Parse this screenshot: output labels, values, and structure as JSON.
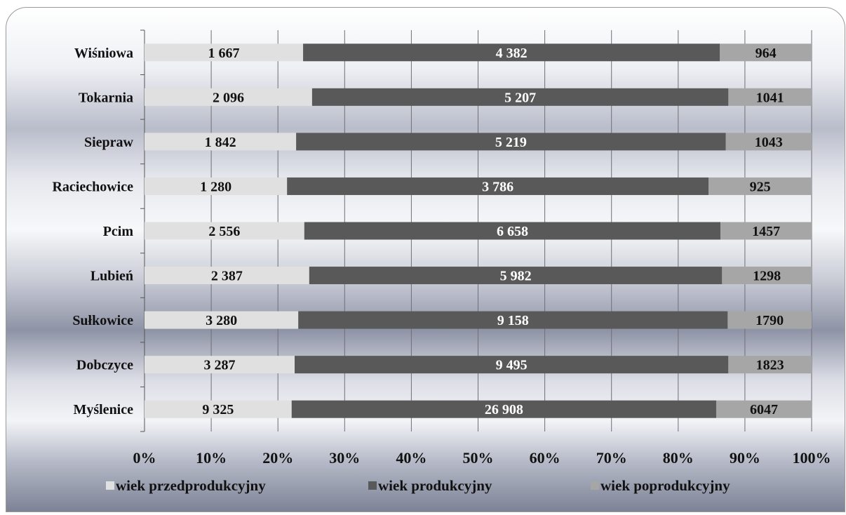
{
  "chart_data": {
    "type": "bar",
    "orientation": "horizontal",
    "stacking": "percent",
    "categories": [
      "Myślenice",
      "Dobczyce",
      "Sułkowice",
      "Lubień",
      "Pcim",
      "Raciechowice",
      "Siepraw",
      "Tokarnia",
      "Wiśniowa"
    ],
    "series": [
      {
        "name": "wiek przedprodukcyjny",
        "color": "#e0e0e0",
        "values": [
          9325,
          3287,
          3280,
          2387,
          2556,
          1280,
          1842,
          2096,
          1667
        ],
        "labels": [
          "9 325",
          "3 287",
          "3 280",
          "2 387",
          "2 556",
          "1 280",
          "1 842",
          "2 096",
          "1 667"
        ]
      },
      {
        "name": "wiek produkcyjny",
        "color": "#595959",
        "values": [
          26908,
          9495,
          9158,
          5982,
          6658,
          3786,
          5219,
          5207,
          4382
        ],
        "labels": [
          "26 908",
          "9 495",
          "9 158",
          "5 982",
          "6 658",
          "3 786",
          "5 219",
          "5 207",
          "4 382"
        ]
      },
      {
        "name": "wiek poprodukcyjny",
        "color": "#a6a6a6",
        "values": [
          6047,
          1823,
          1790,
          1298,
          1457,
          925,
          1043,
          1041,
          964
        ],
        "labels": [
          "6047",
          "1823",
          "1790",
          "1298",
          "1457",
          "925",
          "1043",
          "1041",
          "964"
        ]
      }
    ],
    "x_ticks": [
      "0%",
      "10%",
      "20%",
      "30%",
      "40%",
      "50%",
      "60%",
      "70%",
      "80%",
      "90%",
      "100%"
    ],
    "xlim": [
      0,
      100
    ],
    "grid": true,
    "legend_position": "bottom"
  }
}
